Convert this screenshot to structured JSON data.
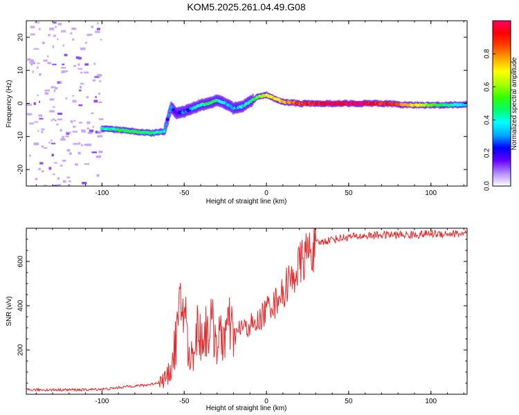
{
  "figure_title": "KOM5.2025.261.04.49.G08",
  "chart_data": [
    {
      "type": "heatmap",
      "name": "spectrogram",
      "xlabel": "Height of straight line (km)",
      "ylabel": "Frequency (Hz)",
      "xlim": [
        -146,
        122
      ],
      "ylim": [
        -25,
        25
      ],
      "x_ticks": [
        -100,
        -50,
        0,
        50,
        100
      ],
      "x_tick_labels": [
        "-100",
        "-50",
        "0",
        "50",
        "100"
      ],
      "y_ticks": [
        -20,
        -10,
        0,
        10,
        20
      ],
      "y_tick_labels": [
        "-20",
        "-10",
        "0",
        "10",
        "20"
      ],
      "ridge": {
        "x": [
          -100,
          -90,
          -80,
          -70,
          -62,
          -58,
          -55,
          -50,
          -45,
          -40,
          -35,
          -30,
          -25,
          -20,
          -15,
          -10,
          -5,
          0,
          5,
          10,
          20,
          30,
          40,
          50,
          60,
          70,
          80,
          90,
          100,
          110,
          120
        ],
        "freq": [
          -7.5,
          -8,
          -8.5,
          -9,
          -8.5,
          -1,
          -3,
          -2.5,
          -1.5,
          -0.5,
          0,
          1,
          0,
          -1.5,
          -1,
          0.5,
          2,
          2.5,
          1.5,
          0.5,
          0,
          0,
          0,
          0,
          0,
          0,
          -0.3,
          -0.5,
          -0.5,
          -0.5,
          -0.3
        ],
        "amplitude": [
          0.4,
          0.45,
          0.5,
          0.45,
          0.35,
          0.25,
          0.2,
          0.25,
          0.35,
          0.45,
          0.5,
          0.45,
          0.35,
          0.3,
          0.35,
          0.45,
          0.55,
          0.6,
          0.7,
          0.75,
          0.85,
          0.9,
          0.95,
          0.95,
          0.95,
          0.9,
          0.85,
          0.7,
          0.55,
          0.45,
          0.35
        ]
      },
      "colorbar": {
        "label": "Normalized spectral amplitude",
        "range": [
          0,
          1
        ],
        "ticks": [
          0.0,
          0.2,
          0.4,
          0.6,
          0.8
        ],
        "tick_labels": [
          "0.0",
          "0.2",
          "0.4",
          "0.6",
          "0.8"
        ],
        "colors": [
          "#ffffff",
          "#b48cff",
          "#6600ff",
          "#0000ff",
          "#00aaff",
          "#00ffff",
          "#00ff66",
          "#33ff00",
          "#aaff00",
          "#ffff00",
          "#ffaa00",
          "#ff4400",
          "#ff0000",
          "#ff0066"
        ]
      }
    },
    {
      "type": "line",
      "name": "snr",
      "xlabel": "Height of straight line (km)",
      "ylabel": "SNR (v/v)",
      "xlim": [
        -146,
        122
      ],
      "ylim": [
        0,
        750
      ],
      "x_ticks": [
        -100,
        -50,
        0,
        50,
        100
      ],
      "x_tick_labels": [
        "-100",
        "-50",
        "0",
        "50",
        "100"
      ],
      "y_ticks": [
        200,
        400,
        600
      ],
      "y_tick_labels": [
        "200",
        "400",
        "600"
      ],
      "color": "#e8282a",
      "series": [
        {
          "name": "SNR",
          "x": [
            -146,
            -130,
            -110,
            -95,
            -85,
            -75,
            -70,
            -65,
            -60,
            -57,
            -55,
            -52,
            -50,
            -47,
            -45,
            -42,
            -40,
            -37,
            -35,
            -32,
            -30,
            -27,
            -25,
            -22,
            -20,
            -17,
            -15,
            -12,
            -10,
            -7,
            -5,
            -2,
            0,
            3,
            5,
            8,
            10,
            13,
            15,
            18,
            20,
            23,
            25,
            28,
            30,
            35,
            40,
            50,
            60,
            70,
            80,
            90,
            100,
            110,
            122
          ],
          "y": [
            20,
            20,
            20,
            25,
            35,
            40,
            45,
            55,
            80,
            150,
            250,
            380,
            420,
            150,
            180,
            300,
            260,
            280,
            310,
            290,
            240,
            250,
            280,
            300,
            260,
            280,
            310,
            290,
            320,
            300,
            330,
            360,
            380,
            420,
            400,
            470,
            430,
            520,
            500,
            560,
            580,
            620,
            640,
            660,
            680,
            690,
            700,
            710,
            715,
            720,
            720,
            720,
            725,
            725,
            725
          ]
        }
      ]
    }
  ]
}
